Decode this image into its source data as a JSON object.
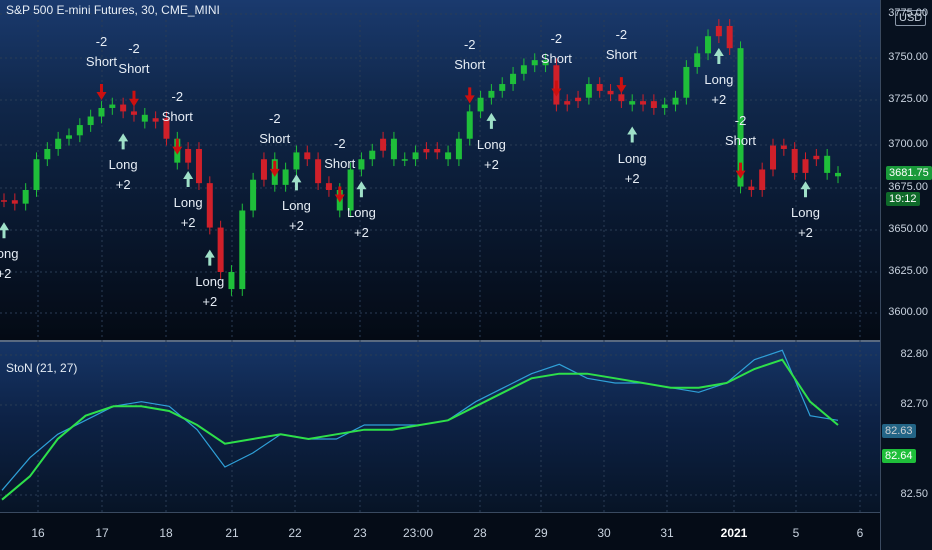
{
  "chart_title": "S&P 500 E-mini Futures, 30, CME_MINI",
  "indicator_title": "StoN (21, 27)",
  "currency_badge": "USD",
  "last_price": "3681.75",
  "countdown": "19:12",
  "osc_value_green": "82.64",
  "osc_value_blue": "82.63",
  "colors": {
    "up": "#1fbf3a",
    "down": "#d0202a",
    "signal_long": "#9fe0c8",
    "signal_short": "#cc1010",
    "osc_fast": "#2fa0d8",
    "osc_slow": "#2ee04a"
  },
  "price_axis": [
    "3775.00",
    "3750.00",
    "3725.00",
    "3700.00",
    "3675.00",
    "3650.00",
    "3625.00",
    "3600.00"
  ],
  "osc_axis": [
    "82.80",
    "82.70",
    "82.50"
  ],
  "time_axis": [
    "16",
    "17",
    "18",
    "21",
    "22",
    "23",
    "23:00",
    "28",
    "29",
    "30",
    "31",
    "2021",
    "5",
    "6"
  ],
  "signal_text": {
    "long": "Long",
    "long_qty": "+2",
    "short": "Short",
    "short_qty": "-2"
  },
  "chart_data": [
    {
      "type": "line",
      "title": "S&P 500 E-mini Futures, 30, CME_MINI",
      "ylim": [
        3590,
        3785
      ],
      "x": [
        0,
        1,
        2,
        3,
        4,
        5,
        6,
        7,
        8,
        9,
        10,
        11,
        12,
        13,
        14,
        15,
        16,
        17,
        18,
        19,
        20,
        21,
        22,
        23,
        24,
        25,
        26,
        27,
        28,
        29,
        30,
        31,
        32,
        33,
        34,
        35,
        36,
        37,
        38,
        39,
        40,
        41,
        42,
        43,
        44,
        45,
        46,
        47,
        48,
        49,
        50,
        51,
        52,
        53,
        54,
        55,
        56,
        57,
        58,
        59,
        60,
        61,
        62,
        63,
        64,
        65,
        66,
        67,
        68,
        69,
        70,
        71,
        72,
        73,
        74,
        75,
        76,
        77
      ],
      "values": [
        3666,
        3664,
        3672,
        3690,
        3696,
        3702,
        3704,
        3710,
        3715,
        3720,
        3722,
        3718,
        3716,
        3712,
        3714,
        3702,
        3688,
        3696,
        3676,
        3650,
        3624,
        3614,
        3660,
        3678,
        3690,
        3675,
        3684,
        3694,
        3690,
        3676,
        3672,
        3660,
        3684,
        3690,
        3695,
        3702,
        3690,
        3690,
        3694,
        3696,
        3694,
        3690,
        3702,
        3718,
        3726,
        3730,
        3734,
        3740,
        3745,
        3748,
        3745,
        3722,
        3724,
        3726,
        3734,
        3730,
        3728,
        3724,
        3722,
        3724,
        3720,
        3722,
        3726,
        3744,
        3752,
        3762,
        3768,
        3755,
        3674,
        3672,
        3684,
        3698,
        3696,
        3682,
        3690,
        3692,
        3682,
        3680
      ],
      "colors": [
        "down",
        "down",
        "up",
        "up",
        "up",
        "up",
        "up",
        "up",
        "up",
        "up",
        "up",
        "down",
        "down",
        "up",
        "down",
        "down",
        "up",
        "down",
        "down",
        "down",
        "down",
        "up",
        "up",
        "up",
        "down",
        "up",
        "up",
        "up",
        "down",
        "down",
        "down",
        "up",
        "up",
        "up",
        "up",
        "down",
        "up",
        "up",
        "up",
        "down",
        "down",
        "up",
        "up",
        "up",
        "up",
        "up",
        "up",
        "up",
        "up",
        "up",
        "up",
        "down",
        "down",
        "down",
        "up",
        "down",
        "down",
        "down",
        "up",
        "down",
        "down",
        "up",
        "up",
        "up",
        "up",
        "up",
        "down",
        "down",
        "up",
        "down",
        "down",
        "down",
        "down",
        "down",
        "down",
        "down",
        "up",
        "up"
      ]
    },
    {
      "type": "line",
      "title": "StoN (21, 27)",
      "ylim": [
        82.48,
        82.82
      ],
      "x": [
        0,
        1,
        2,
        3,
        4,
        5,
        6,
        7,
        8,
        9,
        10,
        11,
        12,
        13,
        14,
        15,
        16,
        17,
        18,
        19,
        20,
        21,
        22,
        23,
        24,
        25,
        26,
        27,
        28,
        29,
        30
      ],
      "series": [
        {
          "values": [
            82.51,
            82.58,
            82.63,
            82.66,
            82.69,
            82.7,
            82.69,
            82.64,
            82.56,
            82.59,
            82.63,
            82.62,
            82.62,
            82.65,
            82.65,
            82.65,
            82.66,
            82.7,
            82.73,
            82.76,
            82.78,
            82.75,
            82.74,
            82.74,
            82.73,
            82.72,
            82.74,
            82.79,
            82.81,
            82.67,
            82.66
          ]
        },
        {
          "values": [
            82.49,
            82.54,
            82.62,
            82.67,
            82.69,
            82.69,
            82.68,
            82.65,
            82.61,
            82.62,
            82.63,
            82.62,
            82.63,
            82.64,
            82.64,
            82.65,
            82.66,
            82.69,
            82.72,
            82.75,
            82.76,
            82.76,
            82.75,
            82.74,
            82.73,
            82.73,
            82.74,
            82.77,
            82.79,
            82.7,
            82.65
          ]
        }
      ]
    }
  ],
  "signals": [
    {
      "kind": "long",
      "index": 0
    },
    {
      "kind": "short",
      "index": 9
    },
    {
      "kind": "long",
      "index": 11
    },
    {
      "kind": "short",
      "index": 12
    },
    {
      "kind": "short",
      "index": 16
    },
    {
      "kind": "long",
      "index": 17
    },
    {
      "kind": "long",
      "index": 19
    },
    {
      "kind": "short",
      "index": 25
    },
    {
      "kind": "long",
      "index": 27
    },
    {
      "kind": "short",
      "index": 31
    },
    {
      "kind": "long",
      "index": 33
    },
    {
      "kind": "short",
      "index": 43
    },
    {
      "kind": "long",
      "index": 45
    },
    {
      "kind": "short",
      "index": 51
    },
    {
      "kind": "short",
      "index": 57
    },
    {
      "kind": "long",
      "index": 58
    },
    {
      "kind": "long",
      "index": 66
    },
    {
      "kind": "short",
      "index": 68
    },
    {
      "kind": "long",
      "index": 74
    }
  ]
}
